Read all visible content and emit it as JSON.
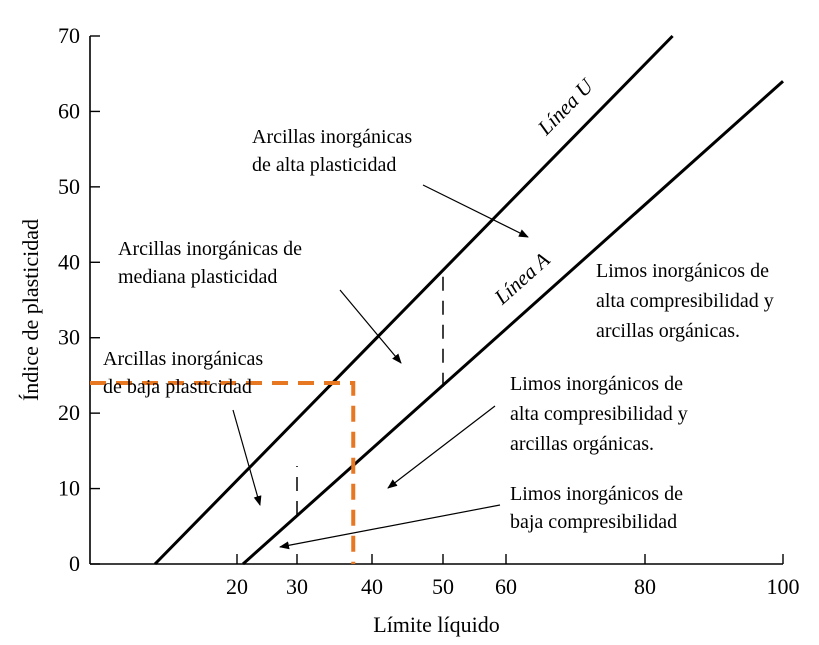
{
  "chart_data": {
    "type": "line",
    "xlabel": "Límite líquido",
    "ylabel": "Índice de plasticidad",
    "xlim": [
      0,
      100
    ],
    "ylim": [
      0,
      70
    ],
    "x_ticks": [
      20,
      30,
      40,
      50,
      60,
      80,
      100
    ],
    "y_ticks": [
      0,
      10,
      20,
      30,
      40,
      50,
      60,
      70
    ],
    "series": [
      {
        "name": "Línea U",
        "x": [
          10,
          84
        ],
        "y": [
          0,
          70
        ],
        "color": "#000000"
      },
      {
        "name": "Línea A",
        "x": [
          21,
          100
        ],
        "y": [
          0,
          64
        ],
        "color": "#000000"
      }
    ],
    "reference_lines": [
      {
        "x": 30,
        "y_range": [
          6.5,
          13
        ],
        "style": "dashed",
        "color": "#000000"
      },
      {
        "x": 50,
        "y_range": [
          23.5,
          39
        ],
        "style": "dashed",
        "color": "#000000"
      }
    ],
    "highlight": {
      "color": "#e87722",
      "style": "dashed",
      "x": [
        0,
        37.5,
        37.5
      ],
      "y": [
        24,
        24,
        0
      ]
    },
    "annotations": [
      {
        "id": "cl-high",
        "lines": [
          "Arcillas inorgánicas",
          "de alta plasticidad"
        ]
      },
      {
        "id": "cl-medium",
        "lines": [
          "Arcillas inorgánicas de",
          "mediana plasticidad"
        ]
      },
      {
        "id": "cl-low",
        "lines": [
          "Arcillas inorgánicas",
          "de baja plasticidad"
        ]
      },
      {
        "id": "mh-upper",
        "lines": [
          "Limos inorgánicos de",
          "alta compresibilidad y",
          "arcillas orgánicas."
        ]
      },
      {
        "id": "mh-lower",
        "lines": [
          "Limos inorgánicos de",
          "alta compresibilidad y",
          "arcillas orgánicas."
        ]
      },
      {
        "id": "ml",
        "lines": [
          "Limos inorgánicos de",
          "baja compresibilidad"
        ]
      }
    ]
  }
}
